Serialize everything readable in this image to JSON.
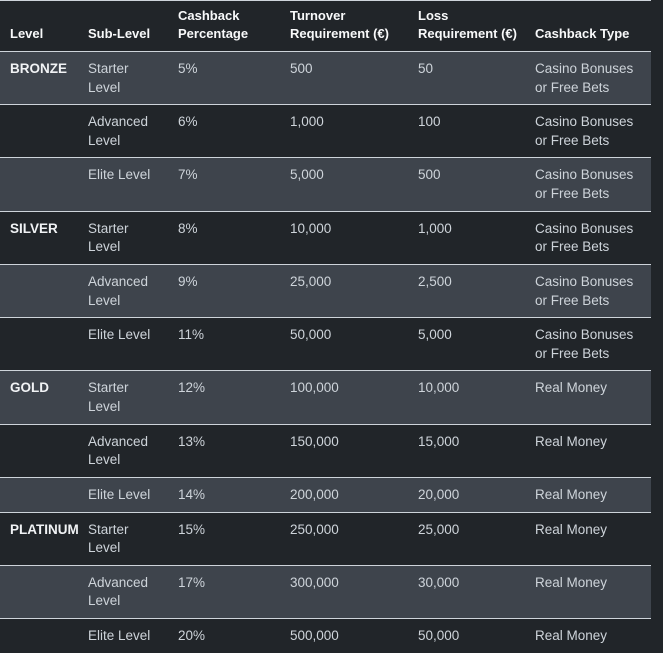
{
  "colors": {
    "background_dark": "#212529",
    "row_stripe_light": "#3e444c",
    "row_border": "#ced4da",
    "header_text": "#f8f9fa",
    "level_text": "#f1f3f5",
    "body_text": "#ced4da"
  },
  "table": {
    "columns": [
      {
        "key": "level",
        "label": "Level"
      },
      {
        "key": "sub_level",
        "label": "Sub-Level"
      },
      {
        "key": "cashback_percentage",
        "label": "Cashback Percentage"
      },
      {
        "key": "turnover_requirement",
        "label": "Turnover Requirement (€)"
      },
      {
        "key": "loss_requirement",
        "label": "Loss Requirement (€)"
      },
      {
        "key": "cashback_type",
        "label": "Cashback Type"
      }
    ],
    "rows": [
      {
        "level": "BRONZE",
        "sub_level": "Starter Level",
        "cashback_percentage": "5%",
        "turnover_requirement": "500",
        "loss_requirement": "50",
        "cashback_type": "Casino Bonuses or Free Bets",
        "height": "tall"
      },
      {
        "level": "",
        "sub_level": "Advanced Level",
        "cashback_percentage": "6%",
        "turnover_requirement": "1,000",
        "loss_requirement": "100",
        "cashback_type": "Casino Bonuses or Free Bets",
        "height": "tall"
      },
      {
        "level": "",
        "sub_level": "Elite Level",
        "cashback_percentage": "7%",
        "turnover_requirement": "5,000",
        "loss_requirement": "500",
        "cashback_type": "Casino Bonuses or Free Bets",
        "height": "tall"
      },
      {
        "level": "SILVER",
        "sub_level": "Starter Level",
        "cashback_percentage": "8%",
        "turnover_requirement": "10,000",
        "loss_requirement": "1,000",
        "cashback_type": "Casino Bonuses or Free Bets",
        "height": "tall"
      },
      {
        "level": "",
        "sub_level": "Advanced Level",
        "cashback_percentage": "9%",
        "turnover_requirement": "25,000",
        "loss_requirement": "2,500",
        "cashback_type": "Casino Bonuses or Free Bets",
        "height": "tall"
      },
      {
        "level": "",
        "sub_level": "Elite Level",
        "cashback_percentage": "11%",
        "turnover_requirement": "50,000",
        "loss_requirement": "5,000",
        "cashback_type": "Casino Bonuses or Free Bets",
        "height": "tall"
      },
      {
        "level": "GOLD",
        "sub_level": "Starter Level",
        "cashback_percentage": "12%",
        "turnover_requirement": "100,000",
        "loss_requirement": "10,000",
        "cashback_type": "Real Money",
        "height": "tall"
      },
      {
        "level": "",
        "sub_level": "Advanced Level",
        "cashback_percentage": "13%",
        "turnover_requirement": "150,000",
        "loss_requirement": "15,000",
        "cashback_type": "Real Money",
        "height": "tall"
      },
      {
        "level": "",
        "sub_level": "Elite Level",
        "cashback_percentage": "14%",
        "turnover_requirement": "200,000",
        "loss_requirement": "20,000",
        "cashback_type": "Real Money",
        "height": "short"
      },
      {
        "level": "PLATINUM",
        "sub_level": "Starter Level",
        "cashback_percentage": "15%",
        "turnover_requirement": "250,000",
        "loss_requirement": "25,000",
        "cashback_type": "Real Money",
        "height": "tall"
      },
      {
        "level": "",
        "sub_level": "Advanced Level",
        "cashback_percentage": "17%",
        "turnover_requirement": "300,000",
        "loss_requirement": "30,000",
        "cashback_type": "Real Money",
        "height": "tall"
      },
      {
        "level": "",
        "sub_level": "Elite Level",
        "cashback_percentage": "20%",
        "turnover_requirement": "500,000",
        "loss_requirement": "50,000",
        "cashback_type": "Real Money",
        "height": "short"
      }
    ]
  }
}
